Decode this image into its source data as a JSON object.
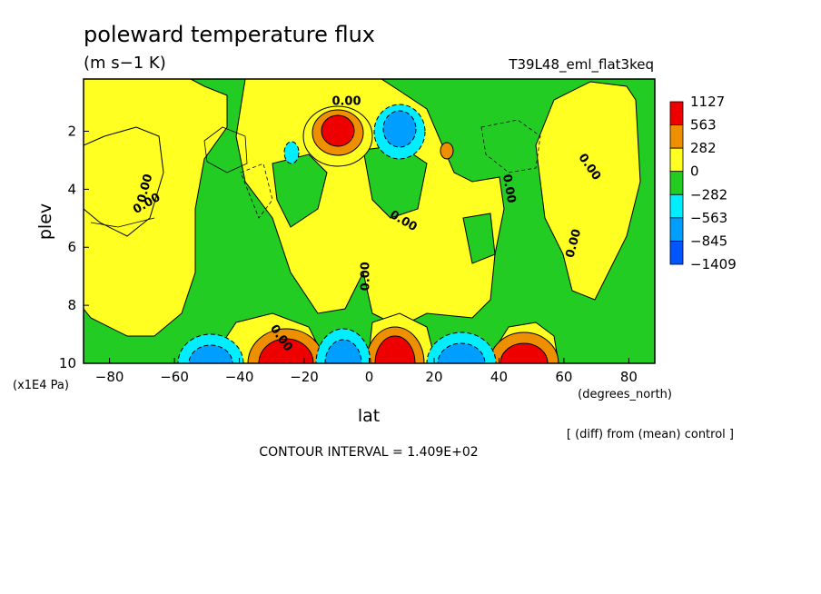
{
  "chart_data": {
    "type": "contour",
    "title": "poleward temperature flux",
    "units": "(m s−1 K)",
    "run_label": "T39L48_eml_flat3keq",
    "xlabel": "lat",
    "x_units": "(degrees_north)",
    "ylabel": "plev",
    "y_units": "(x1E4 Pa)",
    "xlim": [
      -88,
      88
    ],
    "ylim": [
      10,
      0.2
    ],
    "x_ticks": [
      "−80",
      "−60",
      "−40",
      "−20",
      "0",
      "20",
      "40",
      "60",
      "80"
    ],
    "x_tick_values": [
      -80,
      -60,
      -40,
      -20,
      0,
      20,
      40,
      60,
      80
    ],
    "y_ticks": [
      "2",
      "4",
      "6",
      "8",
      "10"
    ],
    "y_tick_values": [
      2,
      4,
      6,
      8,
      10
    ],
    "contour_labels": [
      "0.00",
      "0.00",
      "0.00",
      "0.00",
      "0.00",
      "0.00",
      "0.00",
      "0.00",
      "0.00"
    ],
    "colorbar": {
      "labels": [
        "1127",
        "563",
        "282",
        "0",
        "−282",
        "−563",
        "−845",
        "−1409"
      ],
      "colors": [
        "#ee0000",
        "#ee8f00",
        "#ffff22",
        "#22cc22",
        "#00eeff",
        "#009fff",
        "#0055ff"
      ]
    },
    "colors": {
      "pos_high": "#ee0000",
      "pos_mid": "#ee8f00",
      "pos_low": "#ffff22",
      "neg_low": "#22cc22",
      "neg_mid": "#00eeff",
      "neg_high": "#009fff",
      "neg_max": "#0055ff"
    },
    "features": [
      {
        "sign": "+",
        "level": "1127",
        "lat": -8,
        "plev": 2.0
      },
      {
        "sign": "−",
        "level": "−845",
        "lat": 8,
        "plev": 2.0
      },
      {
        "sign": "−",
        "level": "−563",
        "lat": -27,
        "plev": 2.8
      },
      {
        "sign": "+",
        "level": "563",
        "lat": 27,
        "plev": 2.7
      },
      {
        "sign": "−",
        "level": "−845",
        "lat": -50,
        "plev": 9.5
      },
      {
        "sign": "+",
        "level": "1127",
        "lat": -28,
        "plev": 9.6
      },
      {
        "sign": "−",
        "level": "−845",
        "lat": -10,
        "plev": 9.5
      },
      {
        "sign": "+",
        "level": "1127",
        "lat": 7,
        "plev": 9.6
      },
      {
        "sign": "−",
        "level": "−845",
        "lat": 30,
        "plev": 9.5
      },
      {
        "sign": "+",
        "level": "1127",
        "lat": 48,
        "plev": 9.6
      }
    ],
    "annotation": "[ (diff) from (mean) control ]",
    "contour_interval": "CONTOUR INTERVAL = 1.409E+02"
  }
}
